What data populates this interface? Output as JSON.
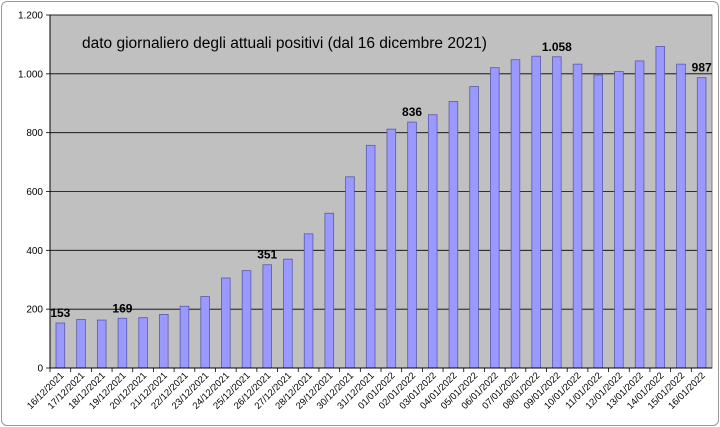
{
  "colors": {
    "plot_background": "#c0c0c0",
    "bar_fill": "#9999ff",
    "bar_stroke": "#5a5aa8",
    "gridline": "#000000"
  },
  "chart_data": {
    "type": "bar",
    "title": "dato giornaliero degli attuali positivi (dal 16 dicembre 2021)",
    "xlabel": "",
    "ylabel": "",
    "ylim": [
      0,
      1200
    ],
    "yticks": [
      0,
      200,
      400,
      600,
      800,
      1000,
      1200
    ],
    "ytick_labels": [
      "0",
      "200",
      "400",
      "600",
      "800",
      "1.000",
      "1.200"
    ],
    "grid": true,
    "legend": "none",
    "categories": [
      "16/12/2021",
      "17/12/2021",
      "18/12/2021",
      "19/12/2021",
      "20/12/2021",
      "21/12/2021",
      "22/12/2021",
      "23/12/2021",
      "24/12/2021",
      "25/12/2021",
      "26/12/2021",
      "27/12/2021",
      "28/12/2021",
      "29/12/2021",
      "30/12/2021",
      "31/12/2021",
      "01/01/2022",
      "02/01/2022",
      "03/01/2022",
      "04/01/2022",
      "05/01/2022",
      "06/01/2022",
      "07/01/2022",
      "08/01/2022",
      "09/01/2022",
      "10/01/2022",
      "11/01/2022",
      "12/01/2022",
      "13/01/2022",
      "14/01/2022",
      "15/01/2022",
      "16/01/2022"
    ],
    "values": [
      153,
      165,
      163,
      169,
      171,
      182,
      210,
      243,
      306,
      331,
      351,
      370,
      456,
      526,
      650,
      757,
      812,
      836,
      861,
      906,
      957,
      1021,
      1048,
      1060,
      1058,
      1033,
      996,
      1008,
      1044,
      1093,
      1033,
      987
    ],
    "data_labels": [
      {
        "category": "16/12/2021",
        "text": "153"
      },
      {
        "category": "19/12/2021",
        "text": "169"
      },
      {
        "category": "26/12/2021",
        "text": "351"
      },
      {
        "category": "02/01/2022",
        "text": "836"
      },
      {
        "category": "09/01/2022",
        "text": "1.058"
      },
      {
        "category": "16/01/2022",
        "text": "987"
      }
    ]
  }
}
